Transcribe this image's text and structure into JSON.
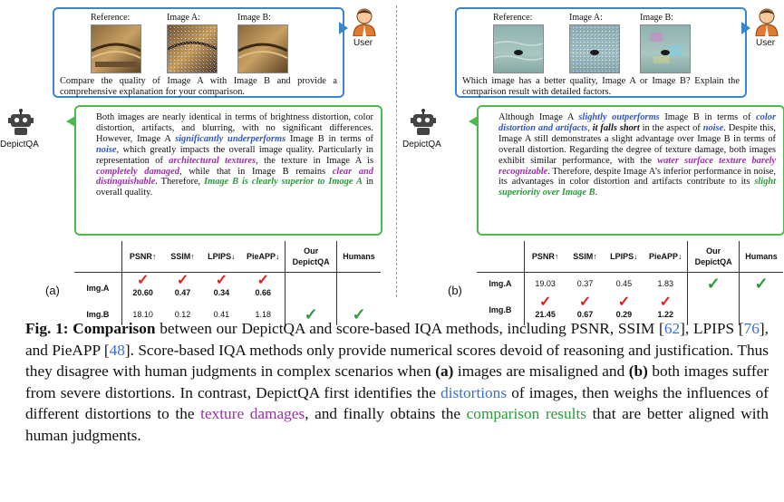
{
  "user_label": "User",
  "robot_label": "DepictQA",
  "thumb_labels": [
    "Reference:",
    "Image A:",
    "Image B:"
  ],
  "panel_a": {
    "letter": "(a)",
    "question": "Compare the quality of Image A with Image B and provide a comprehensive explanation for your comparison.",
    "answer": {
      "t1": "Both images are nearly identical in terms of brightness distortion, color distortion, artifacts, and blurring, with no significant differences. However, Image A ",
      "h1": "significantly underperforms",
      "t2": " Image B in terms of ",
      "h2": "noise",
      "t3": ", which greatly impacts the overall image quality. Particularly in representation of ",
      "h3": "architectural textures",
      "t4": ", the texture in Image A is ",
      "h4": "completely damaged",
      "t5": ", while that in Image B remains ",
      "h5": "clear and distinguishable",
      "t6": ". Therefore, ",
      "h6": "Image B is clearly superior to Image A",
      "t7": " in overall quality."
    },
    "table": {
      "headers": [
        "PSNR↑",
        "SSIM↑",
        "LPIPS↓",
        "PieAPP↓",
        "Our DepictQA",
        "Humans"
      ],
      "rows": [
        {
          "label": "Img.A",
          "psnr": "20.60",
          "ssim": "0.47",
          "lpips": "0.34",
          "pieapp": "0.66"
        },
        {
          "label": "Img.B",
          "psnr": "18.10",
          "ssim": "0.12",
          "lpips": "0.41",
          "pieapp": "1.18"
        }
      ]
    }
  },
  "panel_b": {
    "letter": "(b)",
    "question": "Which image has a better quality, Image A or Image B? Explain the comparison result with detailed factors.",
    "answer": {
      "t1": "Although Image A ",
      "h1": "slightly outperforms",
      "t2": " Image B in terms of ",
      "h2": "color distortion and artifacts",
      "t3": ", ",
      "h3": "it falls short",
      "t4": " in the aspect of ",
      "h4": "noise",
      "t5": ". Despite this, Image A still demonstrates a slight advantage over Image B in terms of overall distortion. Regarding the degree of texture damage, both images exhibit similar performance, with the ",
      "h5": "water surface texture barely recognizable",
      "t6": ". Therefore, despite Image A’s inferior performance in noise, its advantages in color distortion and artifacts contribute to its ",
      "h6": "slight superiority over Image B",
      "t7": "."
    },
    "table": {
      "headers": [
        "PSNR↑",
        "SSIM↑",
        "LPIPS↓",
        "PieAPP↓",
        "Our DepictQA",
        "Humans"
      ],
      "rows": [
        {
          "label": "Img.A",
          "psnr": "19.03",
          "ssim": "0.37",
          "lpips": "0.45",
          "pieapp": "1.83"
        },
        {
          "label": "Img.B",
          "psnr": "21.45",
          "ssim": "0.67",
          "lpips": "0.29",
          "pieapp": "1.22"
        }
      ]
    }
  },
  "caption": {
    "fig": "Fig. 1:",
    "bold": "Comparison",
    "p1": " between our DepictQA and score-based IQA methods, including PSNR, SSIM [",
    "r1": "62",
    "p2": "], LPIPS [",
    "r2": "76",
    "p3": "], and PieAPP [",
    "r3": "48",
    "p4": "]. Score-based IQA methods only provide numerical scores devoid of reasoning and justification. Thus they disagree with human judgments in complex scenarios when ",
    "a": "(a)",
    "p5": " images are misaligned and ",
    "b": "(b)",
    "p6": " both images suffer from severe distortions. In contrast, DepictQA first identifies the ",
    "w1": "distortions",
    "p7": " of images, then weighs the influences of different distortions to the ",
    "w2": "texture damages",
    "p8": ", and finally obtains the ",
    "w3": "comparison results",
    "p9": " that are better aligned with human judgments."
  },
  "colors": {
    "user_border": "#3b86c8",
    "answer_border": "#4cba4a",
    "highlight_blue": "#2f55c9",
    "highlight_purple": "#9b2fa9",
    "highlight_green": "#2a9a3a",
    "check_red": "#d22",
    "check_green": "#2a9a3a"
  },
  "icons": [
    "user-icon",
    "robot-icon",
    "red-check-icon",
    "green-check-icon"
  ]
}
